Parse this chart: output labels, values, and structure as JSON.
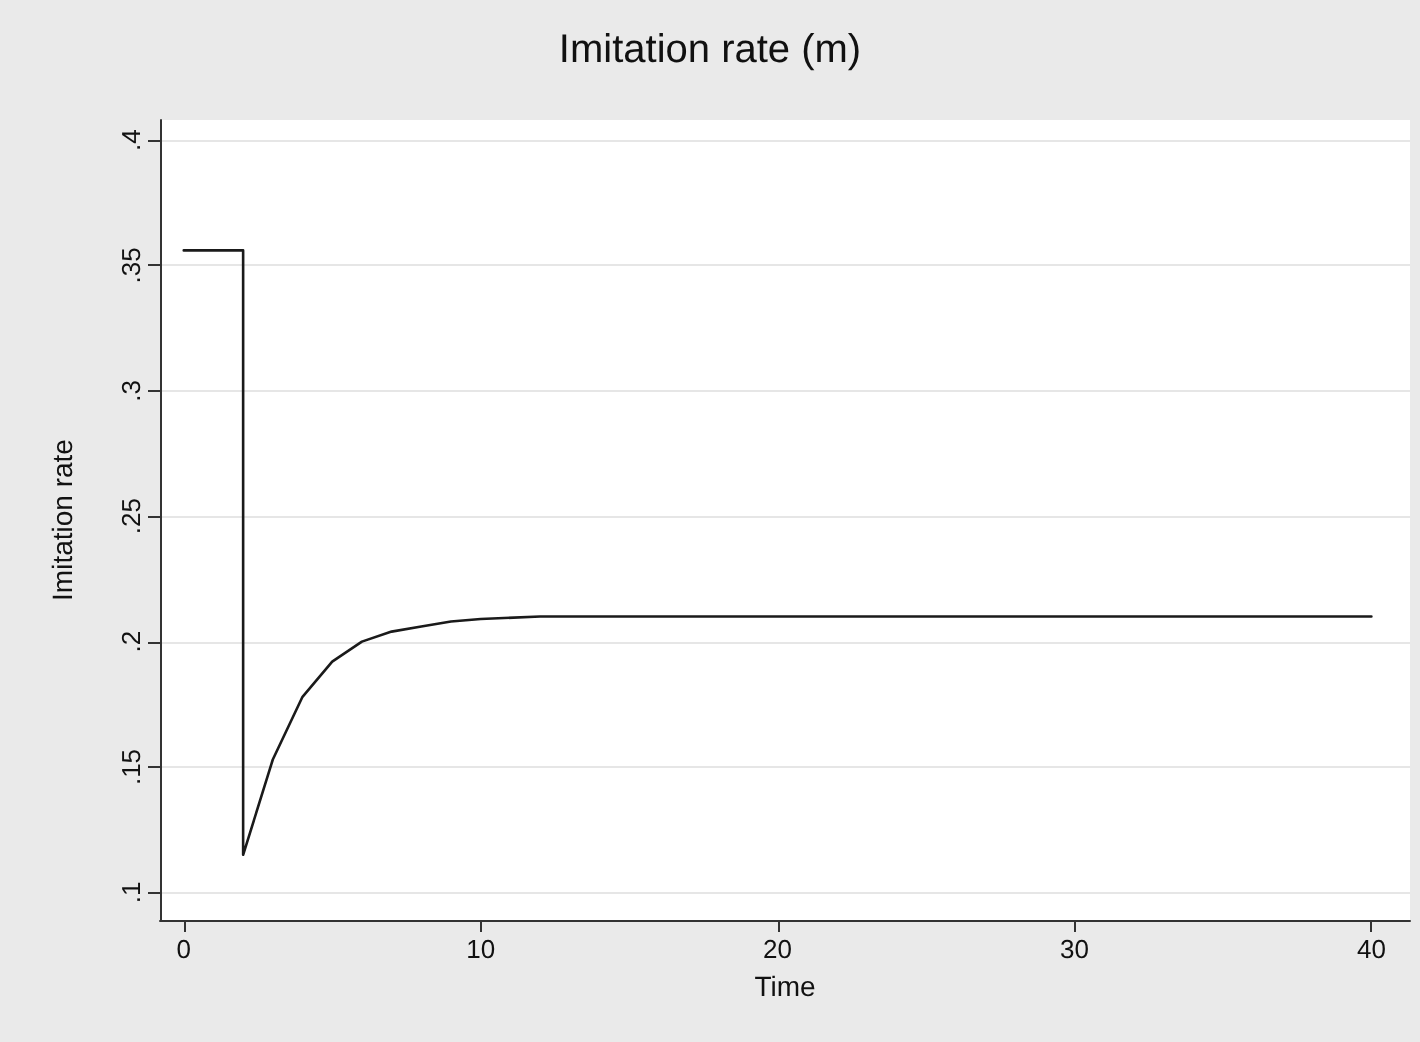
{
  "chart_data": {
    "type": "line",
    "title": "Imitation rate (m)",
    "xlabel": "Time",
    "ylabel": "Imitation rate",
    "x": [
      0,
      2,
      2,
      3,
      4,
      5,
      6,
      7,
      8,
      9,
      10,
      12,
      40
    ],
    "series": [
      {
        "color": "#1a1a1a",
        "values": [
          0.356,
          0.356,
          0.115,
          0.153,
          0.178,
          0.192,
          0.2,
          0.204,
          0.206,
          0.208,
          0.209,
          0.21,
          0.21
        ]
      }
    ],
    "xlim": [
      -0.8,
      41.3
    ],
    "xticks": [
      0,
      10,
      20,
      30,
      40
    ],
    "ylim": [
      0.089,
      0.408
    ],
    "yticks": [
      {
        "value": 0.1,
        "label": ".1"
      },
      {
        "value": 0.15,
        "label": ".15"
      },
      {
        "value": 0.2,
        "label": ".2"
      },
      {
        "value": 0.25,
        "label": ".25"
      },
      {
        "value": 0.3,
        "label": ".3"
      },
      {
        "value": 0.35,
        "label": ".35"
      },
      {
        "value": 0.4,
        "label": ".4"
      }
    ],
    "grid": "y",
    "marker": "none",
    "line_style": "solid"
  }
}
